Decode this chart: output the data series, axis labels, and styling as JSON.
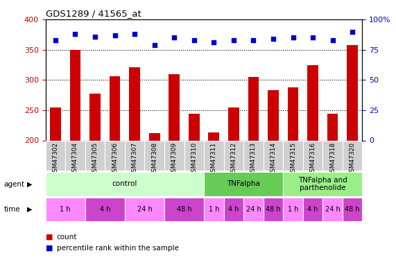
{
  "title": "GDS1289 / 41565_at",
  "samples": [
    "GSM47302",
    "GSM47304",
    "GSM47305",
    "GSM47306",
    "GSM47307",
    "GSM47308",
    "GSM47309",
    "GSM47310",
    "GSM47311",
    "GSM47312",
    "GSM47313",
    "GSM47314",
    "GSM47315",
    "GSM47316",
    "GSM47318",
    "GSM47320"
  ],
  "counts": [
    255,
    350,
    277,
    306,
    321,
    212,
    310,
    244,
    213,
    255,
    305,
    283,
    288,
    325,
    244,
    358
  ],
  "percentiles": [
    83,
    88,
    86,
    87,
    88,
    79,
    85,
    83,
    81,
    83,
    83,
    84,
    85,
    85,
    83,
    90
  ],
  "bar_color": "#cc0000",
  "dot_color": "#0000cc",
  "ylim_left": [
    200,
    400
  ],
  "ylim_right": [
    0,
    100
  ],
  "yticks_left": [
    200,
    250,
    300,
    350,
    400
  ],
  "yticks_right": [
    0,
    25,
    50,
    75,
    100
  ],
  "agent_groups": [
    {
      "label": "control",
      "start": 0,
      "end": 7,
      "color": "#ccffcc"
    },
    {
      "label": "TNFalpha",
      "start": 8,
      "end": 11,
      "color": "#66cc55"
    },
    {
      "label": "TNFalpha and\nparthenolide",
      "start": 12,
      "end": 15,
      "color": "#99ee88"
    }
  ],
  "time_groups": [
    {
      "label": "1 h",
      "start": 0,
      "end": 1,
      "color": "#ff88ff"
    },
    {
      "label": "4 h",
      "start": 2,
      "end": 3,
      "color": "#cc44cc"
    },
    {
      "label": "24 h",
      "start": 4,
      "end": 5,
      "color": "#ff88ff"
    },
    {
      "label": "48 h",
      "start": 6,
      "end": 7,
      "color": "#cc44cc"
    },
    {
      "label": "1 h",
      "start": 8,
      "end": 8,
      "color": "#ff88ff"
    },
    {
      "label": "4 h",
      "start": 9,
      "end": 9,
      "color": "#cc44cc"
    },
    {
      "label": "24 h",
      "start": 10,
      "end": 10,
      "color": "#ff88ff"
    },
    {
      "label": "48 h",
      "start": 11,
      "end": 11,
      "color": "#cc44cc"
    },
    {
      "label": "1 h",
      "start": 12,
      "end": 12,
      "color": "#ff88ff"
    },
    {
      "label": "4 h",
      "start": 13,
      "end": 13,
      "color": "#cc44cc"
    },
    {
      "label": "24 h",
      "start": 14,
      "end": 14,
      "color": "#ff88ff"
    },
    {
      "label": "48 h",
      "start": 15,
      "end": 15,
      "color": "#cc44cc"
    }
  ],
  "legend_count_color": "#cc0000",
  "legend_dot_color": "#0000cc",
  "tick_color_left": "#cc0000",
  "tick_color_right": "#0000cc",
  "sample_box_color": "#d0d0d0",
  "plot_bg": "#ffffff"
}
